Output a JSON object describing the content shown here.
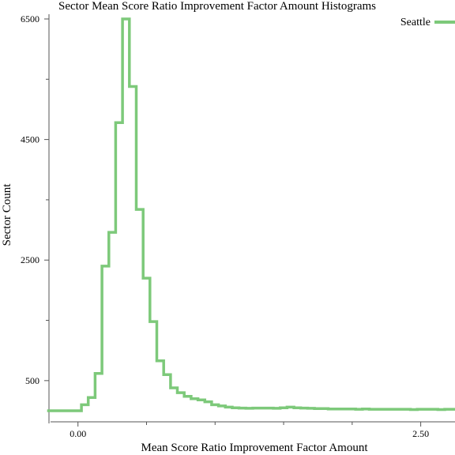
{
  "chart_data": {
    "type": "line",
    "style": "step-histogram",
    "title": "Sector Mean Score Ratio Improvement Factor Amount Histograms",
    "xlabel": "Mean Score Ratio Improvement Factor Amount",
    "ylabel": "Sector Count",
    "xlim": [
      -0.2,
      2.75
    ],
    "ylim": [
      0,
      6500
    ],
    "y_ticks_labeled": [
      {
        "value": 500,
        "label": "500"
      },
      {
        "value": 2500,
        "label": "2500"
      },
      {
        "value": 4500,
        "label": "4500"
      },
      {
        "value": 6500,
        "label": "6500"
      }
    ],
    "y_ticks_minor": [
      1500,
      3500,
      5500
    ],
    "x_ticks_labeled": [
      {
        "value": 0.0,
        "label": "0.00"
      },
      {
        "value": 2.5,
        "label": "2.50"
      }
    ],
    "x_ticks_minor": [
      0.5,
      1.0,
      1.5,
      2.0
    ],
    "legend": {
      "position": "top-right"
    },
    "grid": false,
    "series": [
      {
        "name": "Seattle",
        "color": "#7dc97a",
        "bin_width": 0.05,
        "bin_start": -0.225,
        "values": [
          0,
          0,
          0,
          0,
          0,
          100,
          220,
          620,
          2400,
          2960,
          4780,
          6500,
          5380,
          3340,
          2200,
          1480,
          830,
          600,
          380,
          300,
          240,
          200,
          180,
          150,
          100,
          80,
          60,
          50,
          45,
          40,
          45,
          45,
          45,
          40,
          50,
          60,
          50,
          45,
          40,
          35,
          35,
          30,
          30,
          30,
          30,
          25,
          30,
          25,
          25,
          25,
          25,
          25,
          25,
          20,
          25,
          25,
          25,
          20,
          25,
          25
        ]
      }
    ]
  }
}
